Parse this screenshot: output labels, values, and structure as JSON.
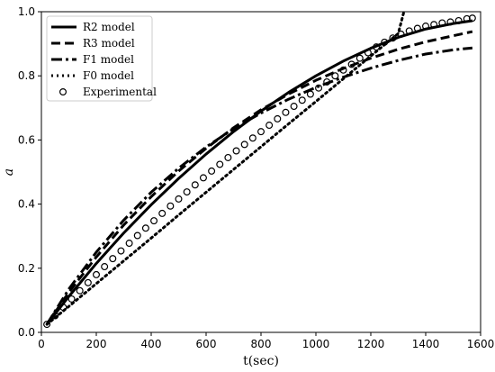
{
  "chart_data": {
    "type": "line",
    "title": "",
    "xlabel": "t(sec)",
    "ylabel": "a",
    "xlim": [
      0,
      1600
    ],
    "ylim": [
      0,
      1.0
    ],
    "x_ticks": [
      "0",
      "200",
      "400",
      "600",
      "800",
      "1000",
      "1200",
      "1400",
      "1600"
    ],
    "y_ticks": [
      "0.0",
      "0.2",
      "0.4",
      "0.6",
      "0.8",
      "1.0"
    ],
    "grid": false,
    "legend_position": "top-left",
    "series": [
      {
        "name": "R2 model",
        "style": "solid",
        "color": "#000000",
        "x": [
          20,
          100,
          200,
          300,
          400,
          500,
          600,
          700,
          800,
          900,
          1000,
          1100,
          1200,
          1300,
          1400,
          1500,
          1570
        ],
        "y": [
          0.025,
          0.112,
          0.215,
          0.31,
          0.398,
          0.48,
          0.556,
          0.626,
          0.69,
          0.748,
          0.8,
          0.846,
          0.886,
          0.92,
          0.946,
          0.963,
          0.972
        ]
      },
      {
        "name": "R3 model",
        "style": "dashed",
        "color": "#000000",
        "x": [
          20,
          100,
          200,
          300,
          400,
          500,
          600,
          700,
          800,
          900,
          1000,
          1100,
          1200,
          1300,
          1400,
          1500,
          1570
        ],
        "y": [
          0.025,
          0.125,
          0.235,
          0.335,
          0.423,
          0.503,
          0.574,
          0.638,
          0.694,
          0.743,
          0.786,
          0.823,
          0.855,
          0.883,
          0.906,
          0.925,
          0.938
        ]
      },
      {
        "name": "F1 model",
        "style": "dashdot",
        "color": "#000000",
        "x": [
          20,
          100,
          200,
          300,
          400,
          500,
          600,
          700,
          800,
          900,
          1000,
          1100,
          1200,
          1300,
          1400,
          1500,
          1570
        ],
        "y": [
          0.025,
          0.135,
          0.25,
          0.35,
          0.437,
          0.512,
          0.578,
          0.635,
          0.684,
          0.727,
          0.764,
          0.796,
          0.824,
          0.848,
          0.868,
          0.881,
          0.887
        ]
      },
      {
        "name": "F0 model",
        "style": "dotted",
        "color": "#000000",
        "x": [
          20,
          100,
          200,
          300,
          400,
          500,
          600,
          700,
          800,
          900,
          1000,
          1100,
          1200,
          1300,
          1320
        ],
        "y": [
          0.025,
          0.081,
          0.152,
          0.223,
          0.294,
          0.366,
          0.437,
          0.508,
          0.579,
          0.65,
          0.72,
          0.791,
          0.862,
          0.932,
          0.998
        ]
      },
      {
        "name": "Experimental",
        "style": "markers",
        "color": "#000000",
        "x": [
          20,
          50,
          80,
          110,
          140,
          170,
          200,
          230,
          260,
          290,
          320,
          350,
          380,
          410,
          440,
          470,
          500,
          530,
          560,
          590,
          620,
          650,
          680,
          710,
          740,
          770,
          800,
          830,
          860,
          890,
          920,
          950,
          980,
          1010,
          1040,
          1070,
          1100,
          1130,
          1160,
          1190,
          1220,
          1250,
          1280,
          1310,
          1340,
          1370,
          1400,
          1430,
          1460,
          1490,
          1520,
          1550,
          1570
        ],
        "y": [
          0.025,
          0.052,
          0.078,
          0.104,
          0.13,
          0.155,
          0.18,
          0.205,
          0.23,
          0.254,
          0.278,
          0.302,
          0.325,
          0.348,
          0.371,
          0.394,
          0.416,
          0.438,
          0.46,
          0.482,
          0.503,
          0.524,
          0.545,
          0.566,
          0.586,
          0.606,
          0.626,
          0.646,
          0.666,
          0.686,
          0.705,
          0.724,
          0.743,
          0.762,
          0.781,
          0.8,
          0.818,
          0.836,
          0.855,
          0.872,
          0.89,
          0.905,
          0.918,
          0.93,
          0.94,
          0.948,
          0.955,
          0.96,
          0.965,
          0.968,
          0.972,
          0.978,
          0.98
        ]
      }
    ]
  }
}
